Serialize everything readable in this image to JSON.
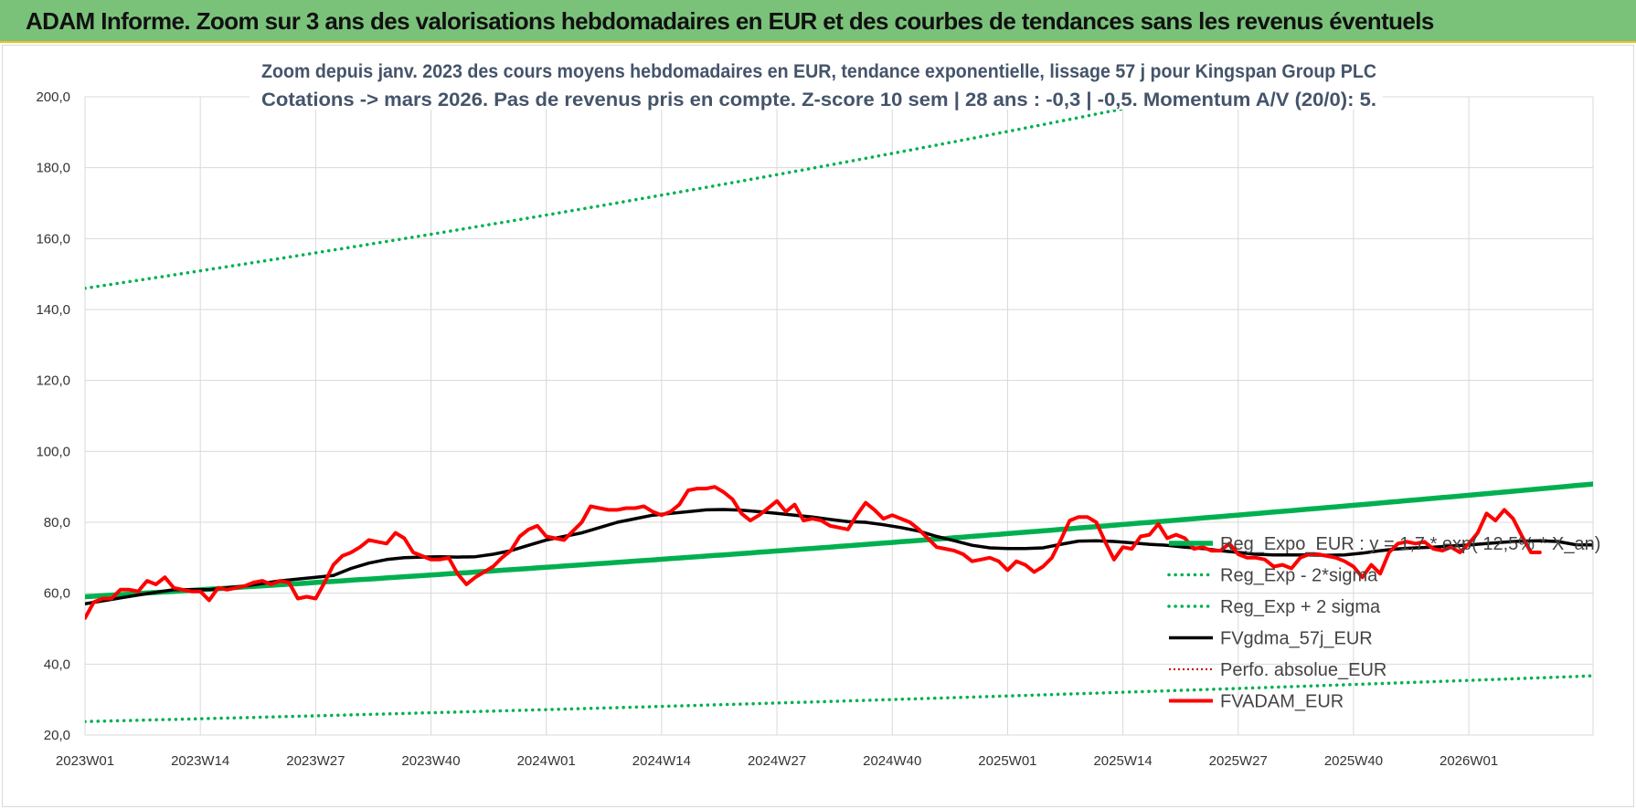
{
  "header": {
    "title": "ADAM Informe. Zoom sur 3 ans des valorisations hebdomadaires en EUR et des courbes de tendances sans les revenus éventuels"
  },
  "colors": {
    "header_bg": "#7ac27a",
    "trend": "#00b050",
    "price": "#ff0000",
    "smoothing": "#000000",
    "perfo": "#c00000",
    "title": "#44546a"
  },
  "chart_data": {
    "type": "line",
    "title_line1": "Zoom depuis janv. 2023 des cours moyens hebdomadaires en EUR, tendance exponentielle, lissage 57 j pour Kingspan Group PLC",
    "title_line2": "Cotations -> mars 2026. Pas de revenus pris en compte. Z-score 10 sem | 28 ans : -0,3 | -0,5. Momentum A/V (20/0): 5.",
    "ylim": [
      20,
      200
    ],
    "yticks": [
      "20,0",
      "40,0",
      "60,0",
      "80,0",
      "100,0",
      "120,0",
      "140,0",
      "160,0",
      "180,0",
      "200,0"
    ],
    "xticks": [
      "2023W01",
      "2023W14",
      "2023W27",
      "2023W40",
      "2024W01",
      "2024W14",
      "2024W27",
      "2024W40",
      "2025W01",
      "2025W14",
      "2025W27",
      "2025W40",
      "2026W01"
    ],
    "x_week_range": [
      0,
      170
    ],
    "grid": true,
    "legend_position": "bottom-right",
    "series": [
      {
        "name": "Reg_Expo_EUR : y = 1,7 * exp( 12,5% * X_an)",
        "style": "solid-thick",
        "points": [
          [
            0,
            59.0
          ],
          [
            170,
            90.8
          ]
        ]
      },
      {
        "name": "Reg_Exp - 2*sigma",
        "style": "dotted",
        "points": [
          [
            0,
            23.8
          ],
          [
            170,
            36.7
          ]
        ]
      },
      {
        "name": "Reg_Exp + 2 sigma",
        "style": "dotted",
        "points": [
          [
            0,
            146.0
          ],
          [
            170,
            225.0
          ]
        ]
      },
      {
        "name": "FVgdma_57j_EUR",
        "style": "solid",
        "points": [
          [
            0,
            57.0
          ],
          [
            6,
            59.5
          ],
          [
            10,
            61.0
          ],
          [
            14,
            61.0
          ],
          [
            18,
            62.0
          ],
          [
            22,
            63.5
          ],
          [
            26,
            64.5
          ],
          [
            28,
            65.0
          ],
          [
            30,
            67.0
          ],
          [
            32,
            68.5
          ],
          [
            34,
            69.5
          ],
          [
            36,
            70.0
          ],
          [
            38,
            70.2
          ],
          [
            40,
            70.3
          ],
          [
            42,
            70.2
          ],
          [
            44,
            70.3
          ],
          [
            46,
            71.0
          ],
          [
            48,
            72.0
          ],
          [
            50,
            73.5
          ],
          [
            52,
            75.0
          ],
          [
            54,
            76.0
          ],
          [
            56,
            77.0
          ],
          [
            58,
            78.5
          ],
          [
            60,
            80.0
          ],
          [
            62,
            81.0
          ],
          [
            64,
            82.0
          ],
          [
            66,
            82.5
          ],
          [
            68,
            83.0
          ],
          [
            70,
            83.5
          ],
          [
            72,
            83.6
          ],
          [
            74,
            83.4
          ],
          [
            76,
            83.0
          ],
          [
            78,
            82.5
          ],
          [
            80,
            82.0
          ],
          [
            82,
            81.5
          ],
          [
            84,
            80.8
          ],
          [
            86,
            80.2
          ],
          [
            88,
            80.0
          ],
          [
            90,
            79.3
          ],
          [
            92,
            78.5
          ],
          [
            94,
            77.5
          ],
          [
            96,
            76.0
          ],
          [
            98,
            74.8
          ],
          [
            100,
            73.5
          ],
          [
            102,
            72.8
          ],
          [
            104,
            72.6
          ],
          [
            106,
            72.6
          ],
          [
            108,
            72.8
          ],
          [
            110,
            73.8
          ],
          [
            112,
            74.7
          ],
          [
            114,
            74.8
          ],
          [
            116,
            74.6
          ],
          [
            118,
            74.2
          ],
          [
            120,
            73.8
          ],
          [
            122,
            73.5
          ],
          [
            124,
            73.0
          ],
          [
            126,
            72.6
          ],
          [
            128,
            72.0
          ],
          [
            130,
            71.5
          ],
          [
            132,
            71.0
          ],
          [
            134,
            70.8
          ],
          [
            136,
            70.8
          ],
          [
            138,
            70.8
          ],
          [
            140,
            70.7
          ],
          [
            142,
            70.8
          ],
          [
            144,
            71.3
          ],
          [
            146,
            72.0
          ],
          [
            148,
            72.5
          ],
          [
            150,
            72.8
          ],
          [
            152,
            73.0
          ],
          [
            154,
            73.3
          ],
          [
            156,
            73.6
          ],
          [
            158,
            74.0
          ],
          [
            160,
            74.4
          ],
          [
            162,
            74.7
          ],
          [
            164,
            74.8
          ],
          [
            166,
            74.6
          ],
          [
            168,
            73.7
          ],
          [
            170,
            73.6
          ]
        ]
      },
      {
        "name": "Perfo. absolue_EUR",
        "style": "dotted-thin",
        "points": []
      },
      {
        "name": "FVADAM_EUR",
        "style": "solid-thick",
        "points": [
          [
            0,
            53.0
          ],
          [
            1,
            57.5
          ],
          [
            2,
            58.5
          ],
          [
            3,
            58.5
          ],
          [
            4,
            61.0
          ],
          [
            5,
            61.0
          ],
          [
            6,
            60.5
          ],
          [
            7,
            63.5
          ],
          [
            8,
            62.5
          ],
          [
            9,
            64.5
          ],
          [
            10,
            61.5
          ],
          [
            11,
            61.0
          ],
          [
            12,
            60.5
          ],
          [
            13,
            60.5
          ],
          [
            14,
            58.0
          ],
          [
            15,
            61.5
          ],
          [
            16,
            61.0
          ],
          [
            17,
            61.5
          ],
          [
            18,
            62.0
          ],
          [
            19,
            63.0
          ],
          [
            20,
            63.5
          ],
          [
            21,
            62.5
          ],
          [
            22,
            63.5
          ],
          [
            23,
            63.0
          ],
          [
            24,
            58.5
          ],
          [
            25,
            59.0
          ],
          [
            26,
            58.5
          ],
          [
            27,
            63.0
          ],
          [
            28,
            68.0
          ],
          [
            29,
            70.5
          ],
          [
            30,
            71.5
          ],
          [
            31,
            73.0
          ],
          [
            32,
            75.0
          ],
          [
            33,
            74.5
          ],
          [
            34,
            74.0
          ],
          [
            35,
            77.0
          ],
          [
            36,
            75.5
          ],
          [
            37,
            71.5
          ],
          [
            38,
            70.5
          ],
          [
            39,
            69.5
          ],
          [
            40,
            69.5
          ],
          [
            41,
            70.0
          ],
          [
            42,
            65.5
          ],
          [
            43,
            62.5
          ],
          [
            44,
            64.5
          ],
          [
            45,
            66.0
          ],
          [
            46,
            67.5
          ],
          [
            47,
            70.0
          ],
          [
            48,
            72.0
          ],
          [
            49,
            76.0
          ],
          [
            50,
            78.0
          ],
          [
            51,
            79.0
          ],
          [
            52,
            76.0
          ],
          [
            53,
            75.5
          ],
          [
            54,
            75.0
          ],
          [
            55,
            77.5
          ],
          [
            56,
            80.0
          ],
          [
            57,
            84.5
          ],
          [
            58,
            84.0
          ],
          [
            59,
            83.5
          ],
          [
            60,
            83.5
          ],
          [
            61,
            84.0
          ],
          [
            62,
            84.0
          ],
          [
            63,
            84.5
          ],
          [
            64,
            83.0
          ],
          [
            65,
            82.0
          ],
          [
            66,
            83.0
          ],
          [
            67,
            85.0
          ],
          [
            68,
            89.0
          ],
          [
            69,
            89.5
          ],
          [
            70,
            89.5
          ],
          [
            71,
            90.0
          ],
          [
            72,
            88.5
          ],
          [
            73,
            86.5
          ],
          [
            74,
            82.5
          ],
          [
            75,
            80.5
          ],
          [
            76,
            82.0
          ],
          [
            77,
            84.0
          ],
          [
            78,
            86.0
          ],
          [
            79,
            83.0
          ],
          [
            80,
            85.0
          ],
          [
            81,
            80.5
          ],
          [
            82,
            81.0
          ],
          [
            83,
            80.5
          ],
          [
            84,
            79.0
          ],
          [
            85,
            78.5
          ],
          [
            86,
            78.0
          ],
          [
            87,
            82.0
          ],
          [
            88,
            85.5
          ],
          [
            89,
            83.5
          ],
          [
            90,
            81.0
          ],
          [
            91,
            82.0
          ],
          [
            92,
            81.0
          ],
          [
            93,
            80.0
          ],
          [
            94,
            78.0
          ],
          [
            95,
            75.5
          ],
          [
            96,
            73.0
          ],
          [
            97,
            72.5
          ],
          [
            98,
            72.0
          ],
          [
            99,
            71.0
          ],
          [
            100,
            69.0
          ],
          [
            101,
            69.5
          ],
          [
            102,
            70.0
          ],
          [
            103,
            69.0
          ],
          [
            104,
            66.5
          ],
          [
            105,
            69.0
          ],
          [
            106,
            68.0
          ],
          [
            107,
            66.0
          ],
          [
            108,
            67.5
          ],
          [
            109,
            70.0
          ],
          [
            110,
            75.0
          ],
          [
            111,
            80.5
          ],
          [
            112,
            81.5
          ],
          [
            113,
            81.5
          ],
          [
            114,
            80.0
          ],
          [
            115,
            74.5
          ],
          [
            116,
            69.5
          ],
          [
            117,
            73.0
          ],
          [
            118,
            72.5
          ],
          [
            119,
            76.0
          ],
          [
            120,
            76.5
          ],
          [
            121,
            79.5
          ],
          [
            122,
            75.5
          ],
          [
            123,
            76.5
          ],
          [
            124,
            75.5
          ],
          [
            125,
            72.5
          ],
          [
            126,
            73.0
          ],
          [
            127,
            72.0
          ],
          [
            128,
            72.0
          ],
          [
            129,
            74.0
          ],
          [
            130,
            71.0
          ],
          [
            131,
            70.0
          ],
          [
            132,
            70.0
          ],
          [
            133,
            69.5
          ],
          [
            134,
            67.5
          ],
          [
            135,
            68.0
          ],
          [
            136,
            67.0
          ],
          [
            137,
            70.0
          ],
          [
            138,
            71.0
          ],
          [
            139,
            71.0
          ],
          [
            140,
            70.5
          ],
          [
            141,
            70.0
          ],
          [
            142,
            69.0
          ],
          [
            143,
            67.5
          ],
          [
            144,
            64.5
          ],
          [
            145,
            68.0
          ],
          [
            146,
            65.5
          ],
          [
            147,
            71.5
          ],
          [
            148,
            74.0
          ],
          [
            149,
            74.5
          ],
          [
            150,
            74.0
          ],
          [
            151,
            74.5
          ],
          [
            152,
            72.5
          ],
          [
            153,
            72.0
          ],
          [
            154,
            73.0
          ],
          [
            155,
            71.5
          ],
          [
            156,
            74.0
          ],
          [
            157,
            77.0
          ],
          [
            158,
            82.5
          ],
          [
            159,
            80.5
          ],
          [
            160,
            83.5
          ],
          [
            161,
            81.0
          ],
          [
            162,
            76.0
          ],
          [
            163,
            71.5
          ],
          [
            164,
            71.5
          ]
        ]
      }
    ]
  }
}
